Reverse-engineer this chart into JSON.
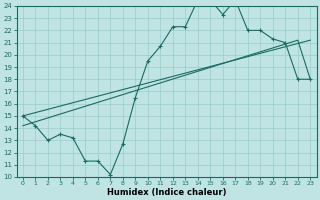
{
  "xlabel": "Humidex (Indice chaleur)",
  "bg_color": "#c0e4e4",
  "grid_color": "#98cccc",
  "line_color": "#1a6a62",
  "xlim_min": -0.5,
  "xlim_max": 23.5,
  "ylim_min": 10,
  "ylim_max": 24,
  "xticks": [
    0,
    1,
    2,
    3,
    4,
    5,
    6,
    7,
    8,
    9,
    10,
    11,
    12,
    13,
    14,
    15,
    16,
    17,
    18,
    19,
    20,
    21,
    22,
    23
  ],
  "yticks": [
    10,
    11,
    12,
    13,
    14,
    15,
    16,
    17,
    18,
    19,
    20,
    21,
    22,
    23,
    24
  ],
  "zigzag_x": [
    0,
    1,
    2,
    3,
    4,
    5,
    6,
    7,
    8,
    9,
    10,
    11,
    12,
    13,
    14,
    15,
    16,
    17,
    18,
    19,
    20,
    21,
    22,
    23
  ],
  "zigzag_y": [
    15,
    14.2,
    13,
    13.5,
    13.2,
    11.3,
    11.3,
    10.2,
    12.7,
    16.5,
    19.5,
    20.7,
    22.3,
    22.3,
    24.5,
    24.5,
    23.3,
    24.5,
    22,
    22,
    21.3,
    21,
    18,
    18
  ],
  "line1_x": [
    0,
    23
  ],
  "line1_y": [
    15,
    21.2
  ],
  "line2_x": [
    0,
    22,
    23
  ],
  "line2_y": [
    14.2,
    21.2,
    18
  ]
}
